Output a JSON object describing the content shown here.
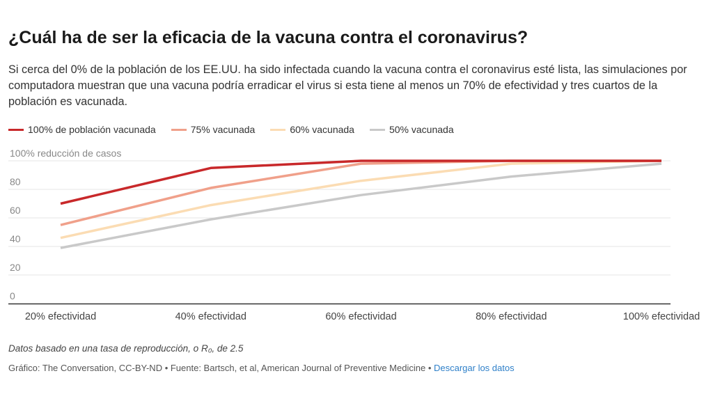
{
  "title": "¿Cuál ha de ser la eficacia de la vacuna contra el coronavirus?",
  "subtitle": "Si cerca del 0% de la población de los EE.UU. ha sido infectada cuando la vacuna contra el coronavirus esté lista, las simulaciones por computadora muestran que una vacuna podría erradicar el virus si esta tiene al menos un 70% de efectividad y tres cuartos de la población es vacunada.",
  "colors": {
    "s100": "#c8282a",
    "s75": "#f0a08a",
    "s60": "#fbdcb3",
    "s50": "#c9c9c9",
    "grid": "#e6e6e6",
    "axis": "#333333",
    "tick": "#888888",
    "link": "#2f80c9"
  },
  "chart_data": {
    "type": "line",
    "title": "¿Cuál ha de ser la eficacia de la vacuna contra el coronavirus?",
    "xlabel": "",
    "ylabel": "100% reducción de casos",
    "categories": [
      "20% efectividad",
      "40% efectividad",
      "60% efectividad",
      "80% efectividad",
      "100% efectividad"
    ],
    "x": [
      20,
      40,
      60,
      80,
      100
    ],
    "ylim": [
      0,
      100
    ],
    "yticks": [
      {
        "value": 100,
        "label": "100% reducción de casos"
      },
      {
        "value": 80,
        "label": "80"
      },
      {
        "value": 60,
        "label": "60"
      },
      {
        "value": 40,
        "label": "40"
      },
      {
        "value": 20,
        "label": "20"
      },
      {
        "value": 0,
        "label": "0"
      }
    ],
    "grid": true,
    "legend_position": "top-left",
    "series": [
      {
        "name": "100% de población vacunada",
        "color": "#c8282a",
        "values": [
          70,
          95,
          100,
          100,
          100
        ]
      },
      {
        "name": "75% vacunada",
        "color": "#f0a08a",
        "values": [
          55,
          81,
          98,
          100,
          100
        ]
      },
      {
        "name": "60% vacunada",
        "color": "#fbdcb3",
        "values": [
          46,
          69,
          86,
          98,
          100
        ]
      },
      {
        "name": "50% vacunada",
        "color": "#c9c9c9",
        "values": [
          39,
          59,
          76,
          89,
          98
        ]
      }
    ]
  },
  "footnote": "Datos basado en una tasa de reproducción, o R₀, de 2.5",
  "credits": {
    "text": "Gráfico: The Conversation, CC-BY-ND • Fuente: Bartsch, et al, American Journal of Preventive Medicine • ",
    "link": "Descargar los datos"
  }
}
